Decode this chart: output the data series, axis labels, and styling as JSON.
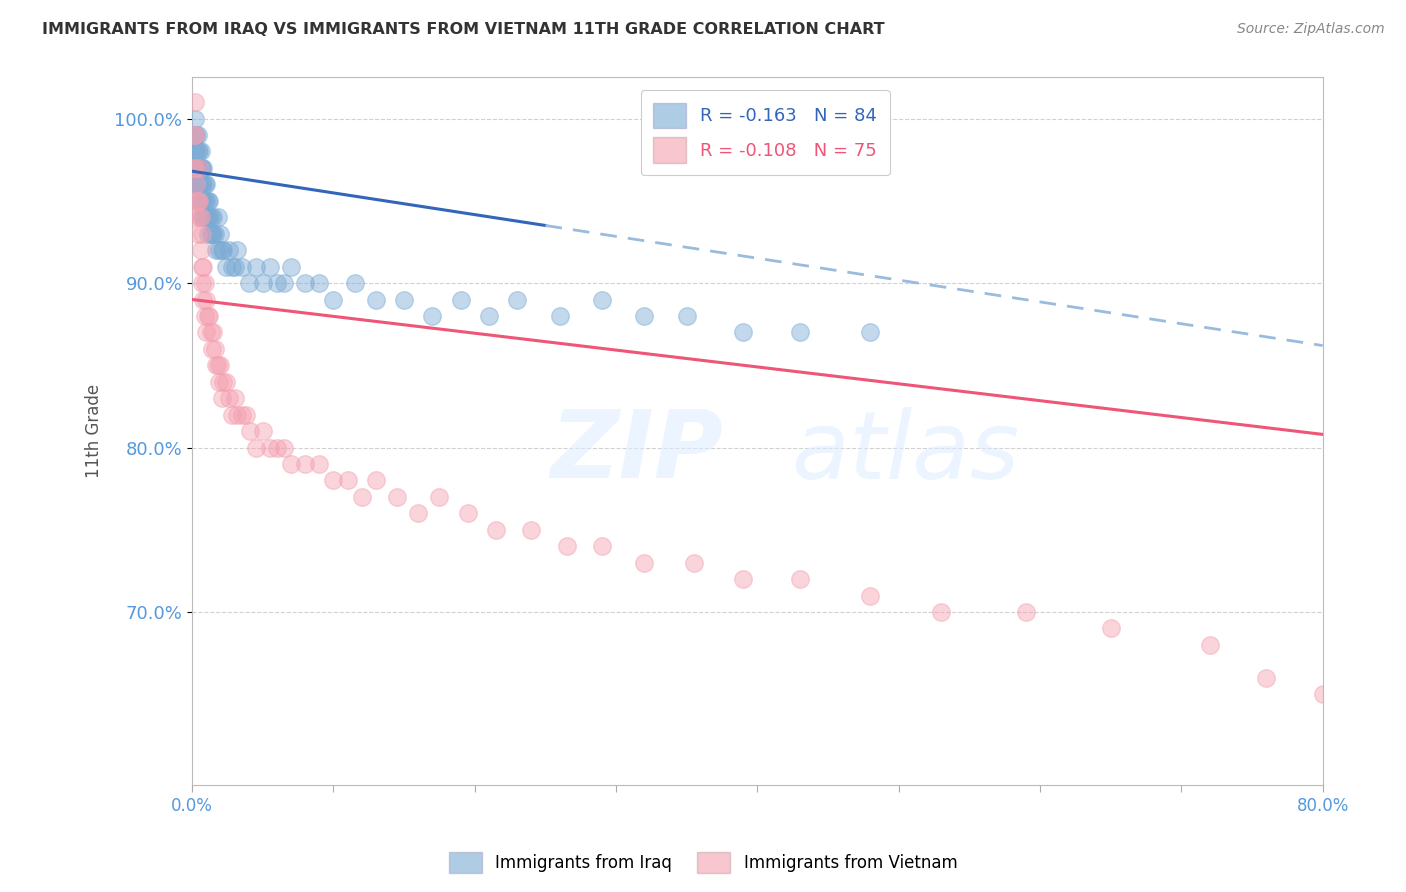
{
  "title": "IMMIGRANTS FROM IRAQ VS IMMIGRANTS FROM VIETNAM 11TH GRADE CORRELATION CHART",
  "source": "Source: ZipAtlas.com",
  "ylabel": "11th Grade",
  "ytick_labels": [
    "100.0%",
    "90.0%",
    "80.0%",
    "70.0%"
  ],
  "ytick_values": [
    1.0,
    0.9,
    0.8,
    0.7
  ],
  "xlim": [
    0.0,
    0.8
  ],
  "ylim": [
    0.595,
    1.025
  ],
  "watermark_zip": "ZIP",
  "watermark_atlas": "atlas",
  "iraq_R": -0.163,
  "iraq_N": 84,
  "vietnam_R": -0.108,
  "vietnam_N": 75,
  "iraq_color": "#7BAAD4",
  "vietnam_color": "#F4A0B0",
  "iraq_line_color": "#3366BB",
  "vietnam_line_color": "#EE5577",
  "trendline_extend_color": "#99BBDD",
  "iraq_scatter_x": [
    0.001,
    0.001,
    0.001,
    0.002,
    0.002,
    0.002,
    0.002,
    0.003,
    0.003,
    0.003,
    0.003,
    0.004,
    0.004,
    0.004,
    0.004,
    0.005,
    0.005,
    0.005,
    0.005,
    0.006,
    0.006,
    0.006,
    0.006,
    0.007,
    0.007,
    0.007,
    0.007,
    0.008,
    0.008,
    0.008,
    0.008,
    0.009,
    0.009,
    0.009,
    0.01,
    0.01,
    0.01,
    0.011,
    0.011,
    0.011,
    0.012,
    0.012,
    0.013,
    0.013,
    0.014,
    0.015,
    0.015,
    0.016,
    0.017,
    0.018,
    0.019,
    0.02,
    0.021,
    0.022,
    0.024,
    0.026,
    0.028,
    0.03,
    0.032,
    0.035,
    0.04,
    0.045,
    0.05,
    0.055,
    0.06,
    0.065,
    0.07,
    0.08,
    0.09,
    0.1,
    0.115,
    0.13,
    0.15,
    0.17,
    0.19,
    0.21,
    0.23,
    0.26,
    0.29,
    0.32,
    0.35,
    0.39,
    0.43,
    0.48
  ],
  "iraq_scatter_y": [
    0.99,
    0.97,
    0.96,
    1.0,
    0.99,
    0.98,
    0.97,
    0.99,
    0.98,
    0.97,
    0.96,
    0.99,
    0.98,
    0.97,
    0.96,
    0.98,
    0.97,
    0.96,
    0.95,
    0.98,
    0.97,
    0.96,
    0.95,
    0.97,
    0.96,
    0.95,
    0.94,
    0.97,
    0.96,
    0.95,
    0.94,
    0.96,
    0.95,
    0.94,
    0.96,
    0.95,
    0.94,
    0.95,
    0.94,
    0.93,
    0.95,
    0.94,
    0.94,
    0.93,
    0.93,
    0.94,
    0.93,
    0.93,
    0.92,
    0.94,
    0.92,
    0.93,
    0.92,
    0.92,
    0.91,
    0.92,
    0.91,
    0.91,
    0.92,
    0.91,
    0.9,
    0.91,
    0.9,
    0.91,
    0.9,
    0.9,
    0.91,
    0.9,
    0.9,
    0.89,
    0.9,
    0.89,
    0.89,
    0.88,
    0.89,
    0.88,
    0.89,
    0.88,
    0.89,
    0.88,
    0.88,
    0.87,
    0.87,
    0.87
  ],
  "vietnam_scatter_x": [
    0.001,
    0.001,
    0.002,
    0.002,
    0.002,
    0.003,
    0.003,
    0.003,
    0.004,
    0.004,
    0.005,
    0.005,
    0.005,
    0.006,
    0.006,
    0.007,
    0.007,
    0.007,
    0.008,
    0.008,
    0.009,
    0.009,
    0.01,
    0.01,
    0.011,
    0.012,
    0.013,
    0.014,
    0.015,
    0.016,
    0.017,
    0.018,
    0.019,
    0.02,
    0.021,
    0.022,
    0.024,
    0.026,
    0.028,
    0.03,
    0.032,
    0.035,
    0.038,
    0.041,
    0.045,
    0.05,
    0.055,
    0.06,
    0.065,
    0.07,
    0.08,
    0.09,
    0.1,
    0.11,
    0.12,
    0.13,
    0.145,
    0.16,
    0.175,
    0.195,
    0.215,
    0.24,
    0.265,
    0.29,
    0.32,
    0.355,
    0.39,
    0.43,
    0.48,
    0.53,
    0.59,
    0.65,
    0.72,
    0.76,
    0.8
  ],
  "vietnam_scatter_y": [
    0.99,
    0.97,
    0.99,
    0.97,
    1.01,
    0.95,
    0.96,
    0.94,
    0.95,
    0.93,
    0.97,
    0.95,
    0.94,
    0.94,
    0.92,
    0.93,
    0.91,
    0.9,
    0.91,
    0.89,
    0.9,
    0.88,
    0.89,
    0.87,
    0.88,
    0.88,
    0.87,
    0.86,
    0.87,
    0.86,
    0.85,
    0.85,
    0.84,
    0.85,
    0.83,
    0.84,
    0.84,
    0.83,
    0.82,
    0.83,
    0.82,
    0.82,
    0.82,
    0.81,
    0.8,
    0.81,
    0.8,
    0.8,
    0.8,
    0.79,
    0.79,
    0.79,
    0.78,
    0.78,
    0.77,
    0.78,
    0.77,
    0.76,
    0.77,
    0.76,
    0.75,
    0.75,
    0.74,
    0.74,
    0.73,
    0.73,
    0.72,
    0.72,
    0.71,
    0.7,
    0.7,
    0.69,
    0.68,
    0.66,
    0.65
  ],
  "iraq_trend_x0": 0.0,
  "iraq_trend_x1": 0.25,
  "iraq_trend_y0": 0.968,
  "iraq_trend_y1": 0.935,
  "iraq_trend_ext_x0": 0.25,
  "iraq_trend_ext_x1": 0.8,
  "iraq_trend_ext_y0": 0.935,
  "iraq_trend_ext_y1": 0.862,
  "vietnam_trend_x0": 0.0,
  "vietnam_trend_x1": 0.8,
  "vietnam_trend_y0": 0.89,
  "vietnam_trend_y1": 0.808,
  "title_color": "#333333",
  "axis_tick_color": "#5599DD",
  "grid_color": "#CCCCCC",
  "background_color": "#FFFFFF"
}
